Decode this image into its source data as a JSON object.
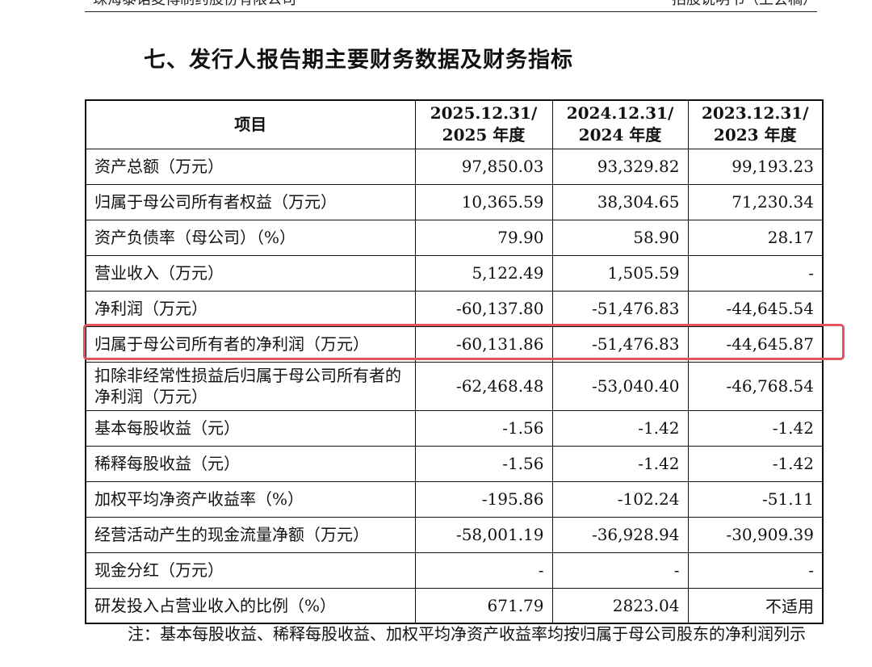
{
  "header": {
    "company": "珠海泰诺麦博制药股份有限公司",
    "doc_type": "招股说明书（上会稿）"
  },
  "section_title": "七、发行人报告期主要财务数据及财务指标",
  "table": {
    "columns": [
      {
        "label": "项目"
      },
      {
        "line1": "2025.12.31/",
        "line2": "2025 年度"
      },
      {
        "line1": "2024.12.31/",
        "line2": "2024 年度"
      },
      {
        "line1": "2023.12.31/",
        "line2": "2023 年度"
      }
    ],
    "rows": [
      {
        "label": "资产总额（万元）",
        "values": [
          "97,850.03",
          "93,329.82",
          "99,193.23"
        ]
      },
      {
        "label": "归属于母公司所有者权益（万元）",
        "values": [
          "10,365.59",
          "38,304.65",
          "71,230.34"
        ]
      },
      {
        "label": "资产负债率（母公司）（%）",
        "values": [
          "79.90",
          "58.90",
          "28.17"
        ]
      },
      {
        "label": "营业收入（万元）",
        "values": [
          "5,122.49",
          "1,505.59",
          "-"
        ]
      },
      {
        "label": "净利润（万元）",
        "values": [
          "-60,137.80",
          "-51,476.83",
          "-44,645.54"
        ]
      },
      {
        "label": "归属于母公司所有者的净利润（万元）",
        "values": [
          "-60,131.86",
          "-51,476.83",
          "-44,645.87"
        ],
        "highlighted": true
      },
      {
        "label": "扣除非经常性损益后归属于母公司所有者的净利润（万元）",
        "values": [
          "-62,468.48",
          "-53,040.40",
          "-46,768.54"
        ]
      },
      {
        "label": "基本每股收益（元）",
        "values": [
          "-1.56",
          "-1.42",
          "-1.42"
        ]
      },
      {
        "label": "稀释每股收益（元）",
        "values": [
          "-1.56",
          "-1.42",
          "-1.42"
        ]
      },
      {
        "label": "加权平均净资产收益率（%）",
        "values": [
          "-195.86",
          "-102.24",
          "-51.11"
        ]
      },
      {
        "label": "经营活动产生的现金流量净额（万元）",
        "values": [
          "-58,001.19",
          "-36,928.94",
          "-30,909.39"
        ]
      },
      {
        "label": "现金分红（万元）",
        "values": [
          "-",
          "-",
          "-"
        ]
      },
      {
        "label": "研发投入占营业收入的比例（%）",
        "values": [
          "671.79",
          "2823.04",
          "不适用"
        ]
      }
    ]
  },
  "note": "注：基本每股收益、稀释每股收益、加权平均净资产收益率均按归属于母公司股东的净利润列示",
  "colors": {
    "highlight": "#e0545e"
  }
}
